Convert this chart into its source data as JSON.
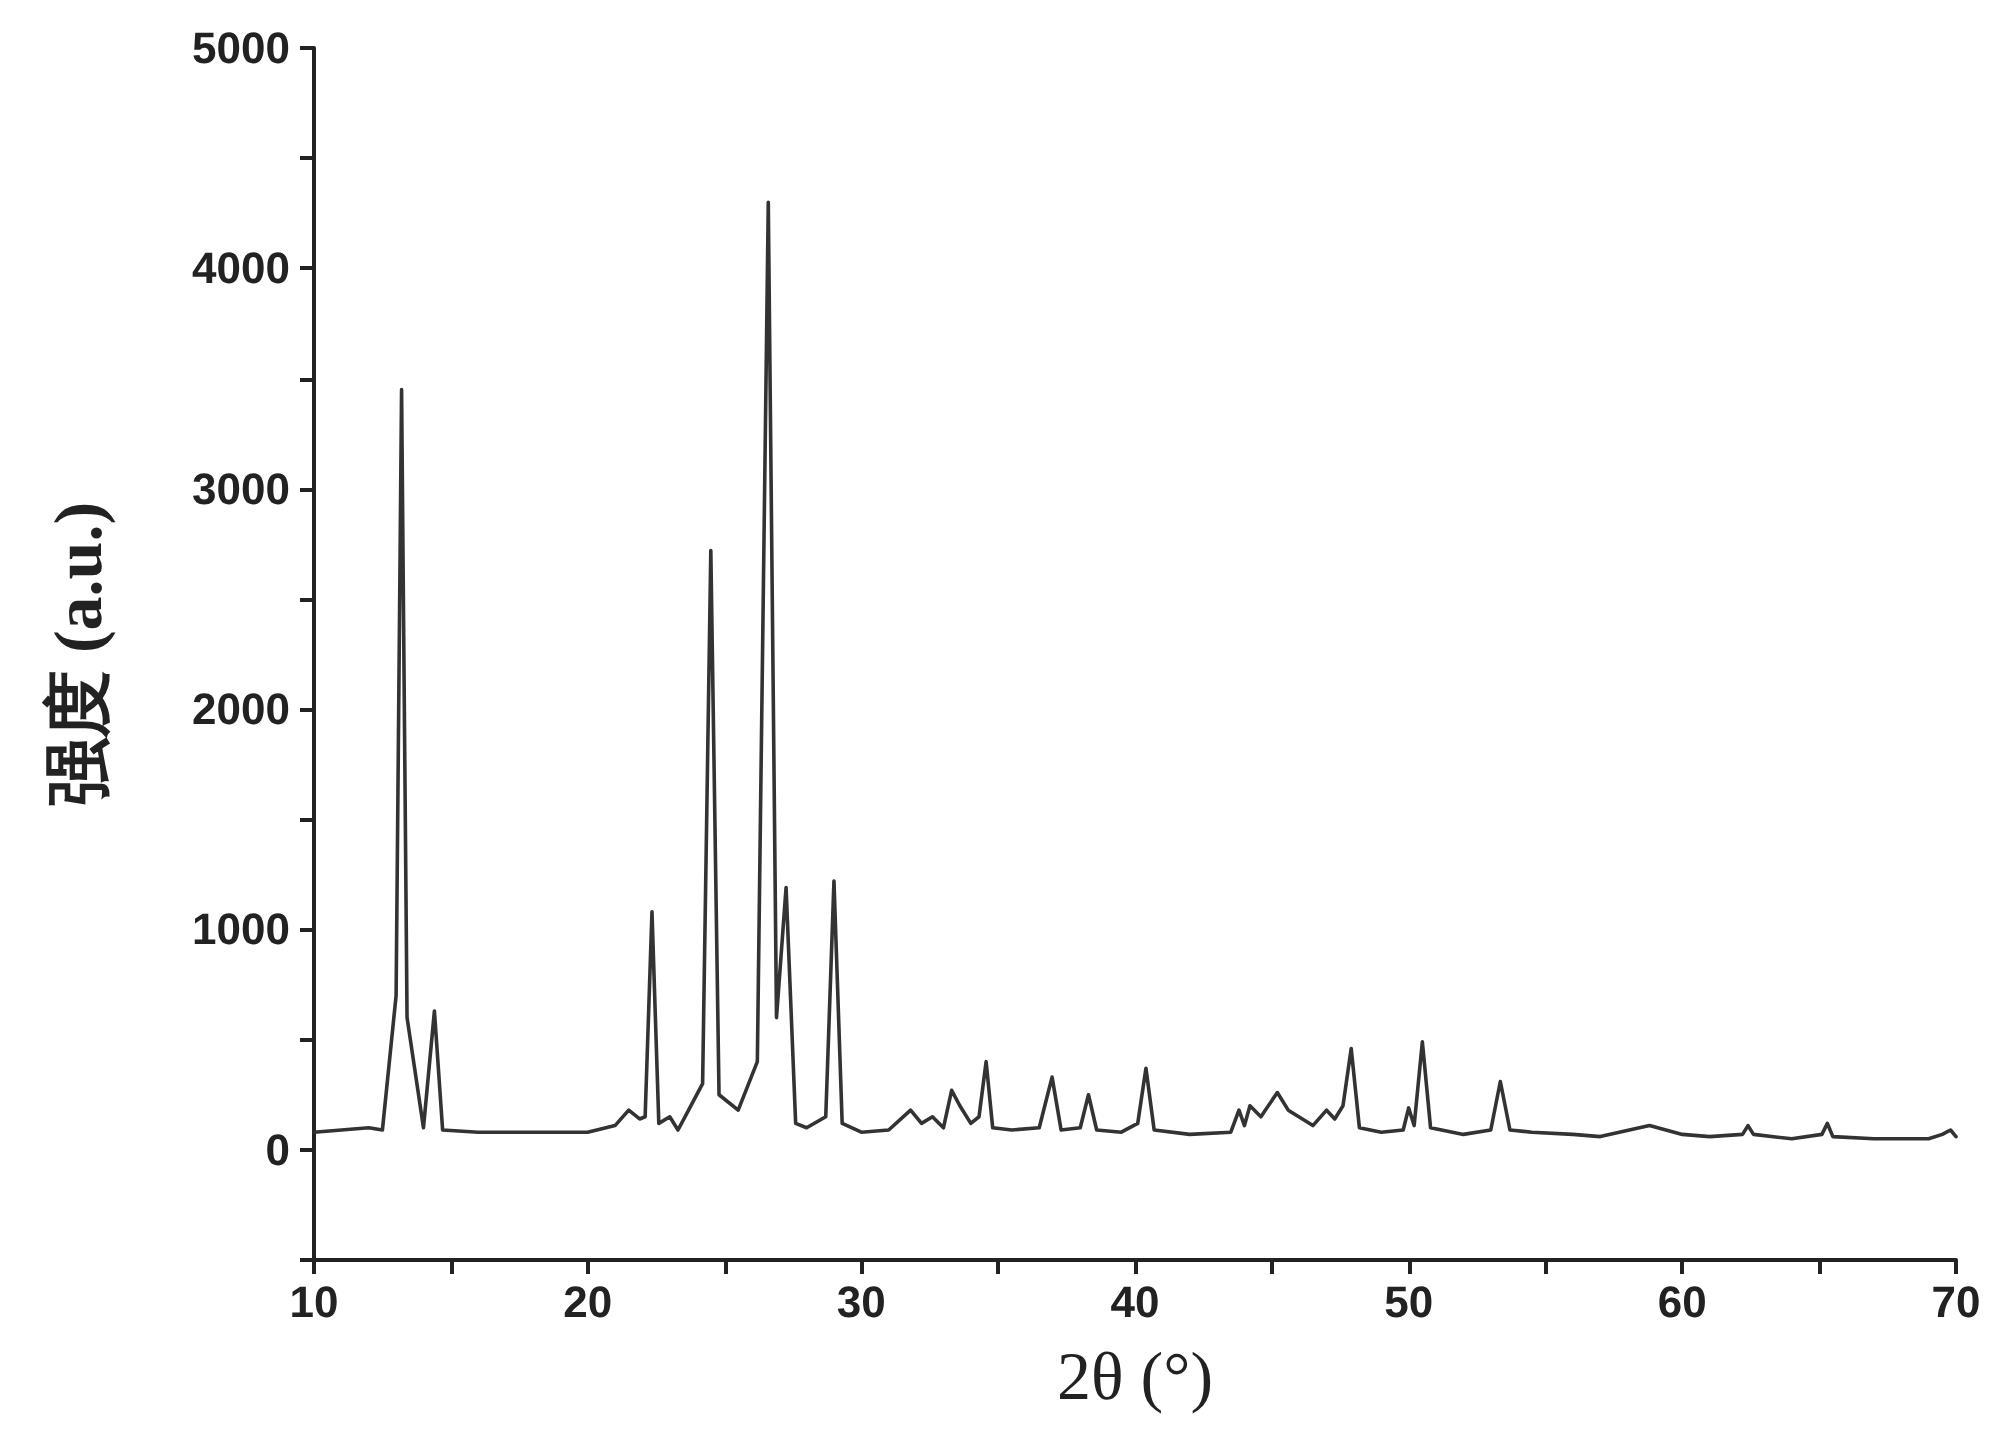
{
  "chart_data": {
    "type": "line",
    "xlabel": "2θ (°)",
    "ylabel": "强度 (a.u.)",
    "x": [
      10,
      11,
      12,
      12.5,
      13.0,
      13.2,
      13.4,
      14.0,
      14.4,
      14.7,
      16,
      18,
      20,
      21,
      21.5,
      21.9,
      22.1,
      22.35,
      22.6,
      23.0,
      23.3,
      23.6,
      24.2,
      24.5,
      24.8,
      25.5,
      26.2,
      26.6,
      26.9,
      27.25,
      27.6,
      28,
      28.7,
      29.0,
      29.3,
      30,
      31,
      31.8,
      32.2,
      32.6,
      33.0,
      33.3,
      33.6,
      34.0,
      34.3,
      34.56,
      34.8,
      35.5,
      36.5,
      36.97,
      37.3,
      38.0,
      38.3,
      38.6,
      39.5,
      40.1,
      40.4,
      40.7,
      42,
      43.5,
      43.8,
      44.0,
      44.2,
      44.6,
      45.2,
      45.6,
      46.5,
      47.0,
      47.3,
      47.6,
      47.9,
      48.2,
      49,
      49.8,
      50.0,
      50.2,
      50.5,
      50.8,
      52,
      53.0,
      53.35,
      53.7,
      54.5,
      56,
      57,
      58.8,
      60,
      61,
      62.2,
      62.4,
      62.6,
      64,
      65.1,
      65.3,
      65.5,
      67,
      69,
      69.5,
      69.8,
      70
    ],
    "series": [
      {
        "color": "#333333",
        "values": [
          80,
          90,
          100,
          90,
          700,
          3450,
          600,
          100,
          630,
          90,
          80,
          80,
          80,
          110,
          180,
          140,
          150,
          1080,
          120,
          150,
          90,
          160,
          300,
          2720,
          250,
          180,
          400,
          4300,
          600,
          1190,
          120,
          100,
          150,
          1220,
          120,
          80,
          90,
          180,
          120,
          150,
          100,
          270,
          200,
          120,
          150,
          400,
          100,
          90,
          100,
          330,
          90,
          100,
          250,
          90,
          80,
          120,
          370,
          90,
          70,
          80,
          180,
          110,
          200,
          150,
          260,
          180,
          110,
          180,
          140,
          200,
          460,
          100,
          80,
          90,
          190,
          110,
          490,
          100,
          70,
          90,
          310,
          90,
          80,
          70,
          60,
          110,
          70,
          60,
          70,
          110,
          70,
          50,
          70,
          120,
          60,
          50,
          50,
          70,
          90,
          60
        ]
      }
    ],
    "xlim": [
      10,
      70
    ],
    "xticks": [
      10,
      {
        "value": 15,
        "label": null
      },
      20,
      {
        "value": 25,
        "label": null
      },
      30,
      {
        "value": 35,
        "label": null
      },
      40,
      {
        "value": 45,
        "label": null
      },
      50,
      {
        "value": 55,
        "label": null
      },
      60,
      {
        "value": 65,
        "label": null
      },
      70
    ],
    "ylim": [
      -500,
      5000
    ],
    "yticks": [
      {
        "value": -500,
        "label": null
      },
      0,
      {
        "value": 500,
        "label": null
      },
      1000,
      {
        "value": 1500,
        "label": null
      },
      2000,
      {
        "value": 2500,
        "label": null
      },
      3000,
      {
        "value": 3500,
        "label": null
      },
      4000,
      {
        "value": 4500,
        "label": null
      },
      5000
    ],
    "grid": false,
    "marker": "none",
    "line_style": "solid"
  }
}
